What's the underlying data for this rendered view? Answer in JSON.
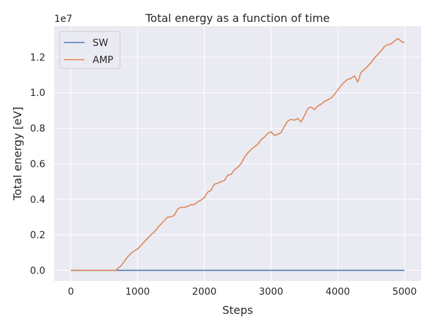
{
  "chart_data": {
    "type": "line",
    "title": "Total energy as a function of time",
    "xlabel": "Steps",
    "ylabel": "Total energy [eV]",
    "y_offset_label": "1e7",
    "xlim": [
      -250,
      5250
    ],
    "ylim": [
      -0.06,
      1.375
    ],
    "x_ticks": [
      0,
      1000,
      2000,
      3000,
      4000,
      5000
    ],
    "x_tick_labels": [
      "0",
      "1000",
      "2000",
      "3000",
      "4000",
      "5000"
    ],
    "y_ticks": [
      0.0,
      0.2,
      0.4,
      0.6,
      0.8,
      1.0,
      1.2
    ],
    "y_tick_labels": [
      "0.0",
      "0.2",
      "0.4",
      "0.6",
      "0.8",
      "1.0",
      "1.2"
    ],
    "grid": true,
    "legend": {
      "placement": "top-left"
    },
    "series": [
      {
        "name": "SW",
        "color": "#4c72b0",
        "x": [
          0,
          5000
        ],
        "y": [
          0.0,
          0.0
        ]
      },
      {
        "name": "AMP",
        "color": "#dd8452",
        "x": [
          0,
          100,
          200,
          300,
          400,
          500,
          600,
          680,
          700,
          750,
          800,
          850,
          900,
          950,
          1000,
          1050,
          1100,
          1150,
          1200,
          1250,
          1300,
          1350,
          1400,
          1450,
          1500,
          1550,
          1600,
          1650,
          1700,
          1750,
          1800,
          1850,
          1900,
          1950,
          2000,
          2050,
          2100,
          2150,
          2200,
          2250,
          2300,
          2350,
          2400,
          2450,
          2500,
          2550,
          2600,
          2650,
          2700,
          2750,
          2800,
          2850,
          2900,
          2950,
          3000,
          3050,
          3100,
          3150,
          3200,
          3250,
          3300,
          3350,
          3400,
          3450,
          3500,
          3550,
          3600,
          3650,
          3700,
          3750,
          3800,
          3850,
          3900,
          3950,
          4000,
          4050,
          4100,
          4150,
          4200,
          4250,
          4300,
          4350,
          4400,
          4450,
          4500,
          4550,
          4600,
          4650,
          4700,
          4750,
          4800,
          4850,
          4900,
          4950,
          5000
        ],
        "y": [
          0.0,
          0.0,
          0.0,
          0.0,
          0.0,
          0.0,
          0.0,
          0.0,
          0.01,
          0.025,
          0.05,
          0.075,
          0.095,
          0.11,
          0.12,
          0.14,
          0.16,
          0.18,
          0.2,
          0.215,
          0.24,
          0.26,
          0.28,
          0.3,
          0.3,
          0.31,
          0.345,
          0.355,
          0.355,
          0.36,
          0.37,
          0.37,
          0.385,
          0.395,
          0.41,
          0.44,
          0.45,
          0.485,
          0.49,
          0.5,
          0.505,
          0.535,
          0.54,
          0.565,
          0.58,
          0.6,
          0.635,
          0.66,
          0.68,
          0.695,
          0.71,
          0.735,
          0.75,
          0.77,
          0.78,
          0.76,
          0.765,
          0.775,
          0.81,
          0.84,
          0.85,
          0.845,
          0.855,
          0.835,
          0.87,
          0.91,
          0.92,
          0.905,
          0.925,
          0.935,
          0.95,
          0.96,
          0.97,
          0.99,
          1.015,
          1.04,
          1.06,
          1.075,
          1.08,
          1.095,
          1.06,
          1.115,
          1.13,
          1.15,
          1.17,
          1.195,
          1.215,
          1.235,
          1.26,
          1.27,
          1.275,
          1.29,
          1.305,
          1.29,
          1.28
        ]
      }
    ]
  }
}
